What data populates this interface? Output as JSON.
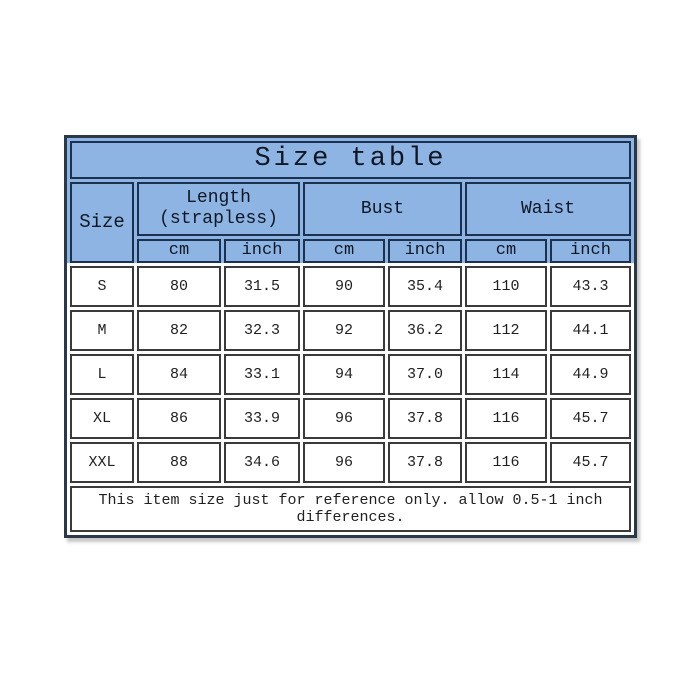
{
  "page": {
    "background_color": "#ffffff"
  },
  "table": {
    "title": "Size table",
    "header": {
      "size_label": "Size",
      "length_label_line1": "Length",
      "length_label_line2": "(strapless)",
      "bust_label": "Bust",
      "waist_label": "Waist",
      "unit_cm": "cm",
      "unit_inch": "inch"
    },
    "rows": [
      {
        "size": "S",
        "length_cm": "80",
        "length_inch": "31.5",
        "bust_cm": "90",
        "bust_inch": "35.4",
        "waist_cm": "110",
        "waist_inch": "43.3"
      },
      {
        "size": "M",
        "length_cm": "82",
        "length_inch": "32.3",
        "bust_cm": "92",
        "bust_inch": "36.2",
        "waist_cm": "112",
        "waist_inch": "44.1"
      },
      {
        "size": "L",
        "length_cm": "84",
        "length_inch": "33.1",
        "bust_cm": "94",
        "bust_inch": "37.0",
        "waist_cm": "114",
        "waist_inch": "44.9"
      },
      {
        "size": "XL",
        "length_cm": "86",
        "length_inch": "33.9",
        "bust_cm": "96",
        "bust_inch": "37.8",
        "waist_cm": "116",
        "waist_inch": "45.7"
      },
      {
        "size": "XXL",
        "length_cm": "88",
        "length_inch": "34.6",
        "bust_cm": "96",
        "bust_inch": "37.8",
        "waist_cm": "116",
        "waist_inch": "45.7"
      }
    ],
    "note": "This item size just for reference only. allow 0.5-1 inch differences.",
    "colors": {
      "header_background": "#8db4e2",
      "header_border": "#1c3050",
      "body_border": "#3a3a3a",
      "outer_border": "#2b3848",
      "text": "#0f1726"
    }
  },
  "chart_data": {
    "type": "table",
    "title": "Size table",
    "column_groups": [
      "Size",
      "Length (strapless)",
      "Bust",
      "Waist"
    ],
    "columns": [
      "Size",
      "Length cm",
      "Length inch",
      "Bust cm",
      "Bust inch",
      "Waist cm",
      "Waist inch"
    ],
    "rows": [
      [
        "S",
        80,
        31.5,
        90,
        35.4,
        110,
        43.3
      ],
      [
        "M",
        82,
        32.3,
        92,
        36.2,
        112,
        44.1
      ],
      [
        "L",
        84,
        33.1,
        94,
        37.0,
        114,
        44.9
      ],
      [
        "XL",
        86,
        33.9,
        96,
        37.8,
        116,
        45.7
      ],
      [
        "XXL",
        88,
        34.6,
        96,
        37.8,
        116,
        45.7
      ]
    ],
    "note": "This item size just for reference only. allow 0.5-1 inch differences."
  }
}
